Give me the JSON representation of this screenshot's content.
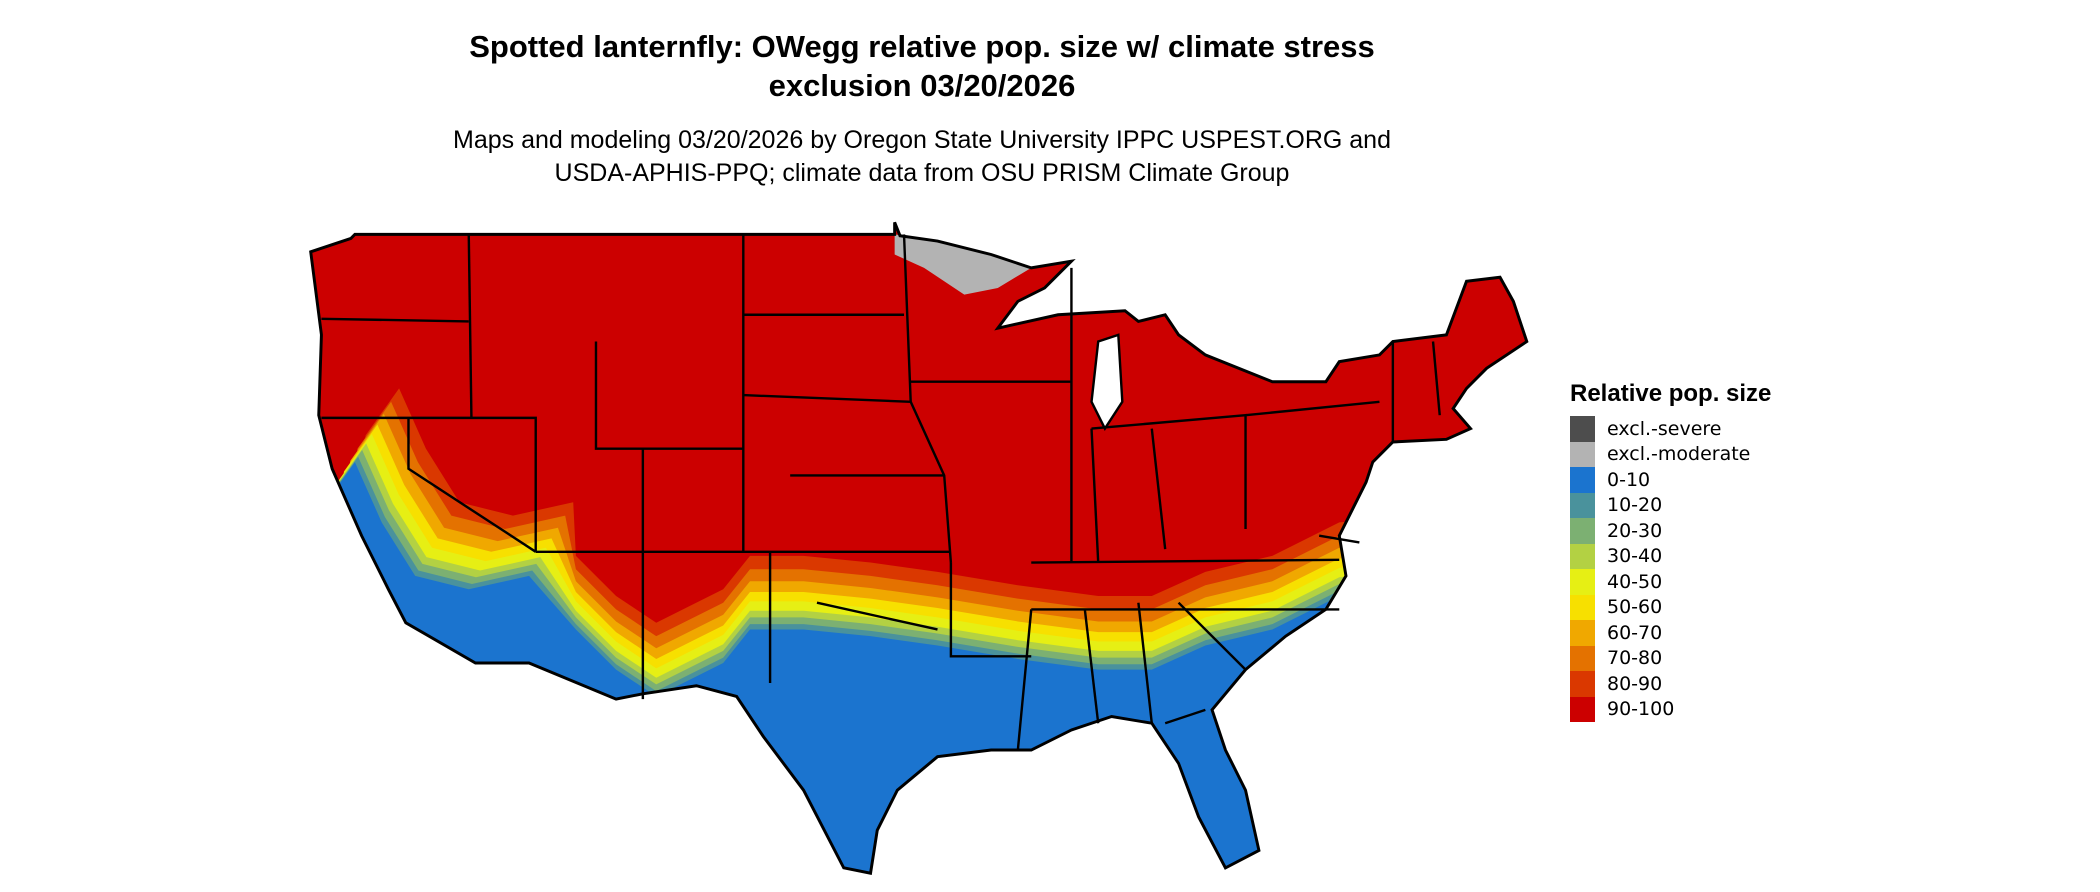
{
  "header": {
    "title_line1": "Spotted lanternfly: OWegg relative pop. size w/ climate stress",
    "title_line2": "exclusion 03/20/2026",
    "subtitle_line1": "Maps and modeling 03/20/2026 by Oregon State University IPPC USPEST.ORG and",
    "subtitle_line2": "USDA-APHIS-PPQ; climate data from OSU PRISM Climate Group"
  },
  "legend": {
    "title": "Relative pop. size",
    "items": [
      {
        "label": "excl.-severe",
        "color": "#4d4d4d"
      },
      {
        "label": "excl.-moderate",
        "color": "#b3b3b3"
      },
      {
        "label": "0-10",
        "color": "#1b74cf"
      },
      {
        "label": "10-20",
        "color": "#4a929c"
      },
      {
        "label": "20-30",
        "color": "#7cb072"
      },
      {
        "label": "30-40",
        "color": "#b3d143"
      },
      {
        "label": "40-50",
        "color": "#e6ef14"
      },
      {
        "label": "50-60",
        "color": "#f7e000"
      },
      {
        "label": "60-70",
        "color": "#f0a800"
      },
      {
        "label": "70-80",
        "color": "#e47200"
      },
      {
        "label": "80-90",
        "color": "#da3800"
      },
      {
        "label": "90-100",
        "color": "#cc0000"
      }
    ]
  },
  "chart_data": {
    "type": "heatmap",
    "title": "Spotted lanternfly: OWegg relative pop. size w/ climate stress exclusion 03/20/2026",
    "region": "Contiguous United States",
    "legend_placement": "right",
    "summary": {
      "north_and_central": "90-100",
      "southern_tier_transition": [
        "80-90",
        "70-80",
        "60-70",
        "50-60",
        "40-50",
        "30-40",
        "20-30",
        "10-20"
      ],
      "gulf_coast_florida_southern_az_ca": "0-10",
      "northern_minnesota": "excl.-moderate"
    }
  }
}
